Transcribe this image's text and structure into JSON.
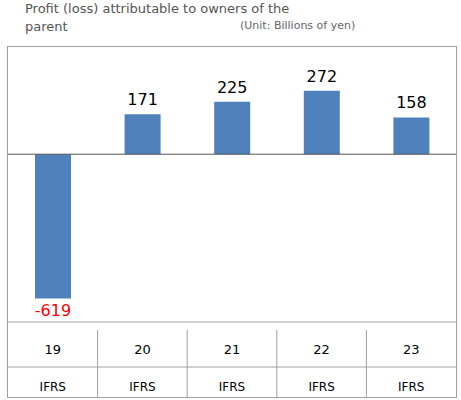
{
  "chart_data": {
    "type": "bar",
    "title": "Profit (loss) attributable to owners of the parent",
    "subtitle": "(Unit: Billions of yen)",
    "categories": [
      "19",
      "20",
      "21",
      "22",
      "23"
    ],
    "category_notes": [
      "IFRS",
      "IFRS",
      "IFRS",
      "IFRS",
      "IFRS"
    ],
    "values": [
      -619,
      171,
      225,
      272,
      158
    ],
    "color": "#4f81bd",
    "ylim": [
      -720,
      460
    ],
    "yticks": [
      0
    ],
    "grid": true,
    "data_labels": true,
    "tick_labels": "x"
  }
}
